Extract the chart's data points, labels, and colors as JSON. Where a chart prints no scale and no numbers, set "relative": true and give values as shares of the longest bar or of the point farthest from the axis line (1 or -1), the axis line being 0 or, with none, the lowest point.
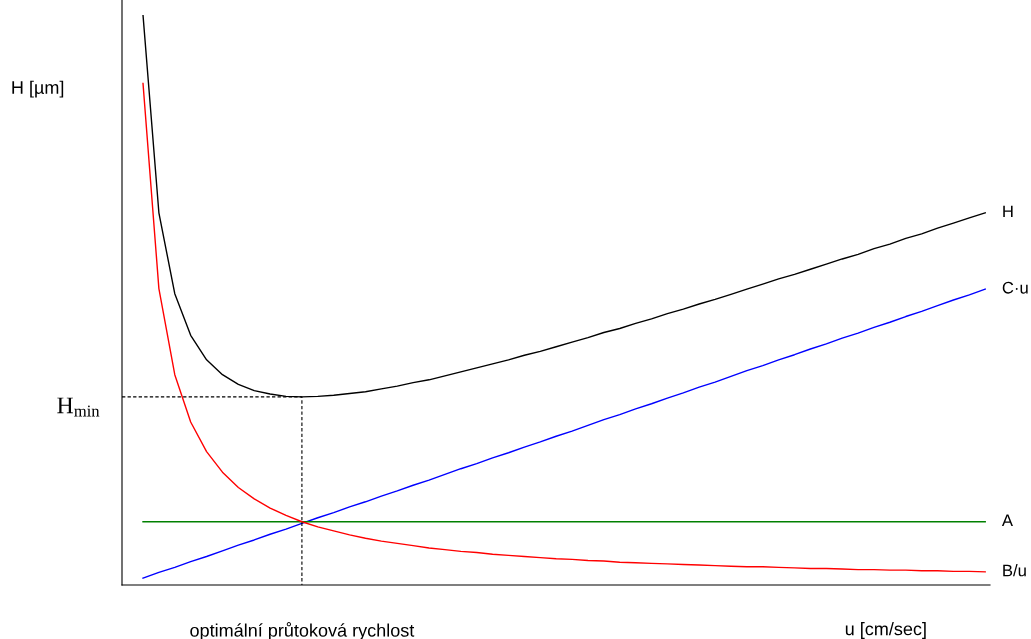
{
  "chart_data": {
    "type": "line",
    "relative": true,
    "ylabel": "H [µm]",
    "xlabel": "u [cm/sec]",
    "categories": [
      null,
      null,
      null,
      null,
      null,
      null,
      null,
      null,
      null,
      null,
      null,
      null,
      null,
      null,
      null,
      null,
      null,
      null,
      null,
      null,
      null,
      null,
      null,
      null,
      null,
      null,
      null,
      null,
      null,
      null,
      null,
      null,
      null,
      null,
      null,
      null,
      null,
      null,
      null,
      null,
      null,
      null,
      null,
      null,
      null,
      null,
      null,
      null,
      null,
      null,
      null,
      null,
      null,
      null
    ],
    "series": [
      {
        "name": "H",
        "color": "#000000",
        "values": [
          1.0,
          0.653,
          0.511,
          0.438,
          0.395,
          0.369,
          0.352,
          0.341,
          0.335,
          0.331,
          0.33,
          0.331,
          0.333,
          0.336,
          0.339,
          0.344,
          0.349,
          0.355,
          0.36,
          0.367,
          0.374,
          0.381,
          0.388,
          0.395,
          0.403,
          0.41,
          0.418,
          0.426,
          0.434,
          0.443,
          0.45,
          0.459,
          0.467,
          0.476,
          0.484,
          0.493,
          0.501,
          0.51,
          0.519,
          0.528,
          0.537,
          0.545,
          0.554,
          0.563,
          0.572,
          0.58,
          0.59,
          0.598,
          0.608,
          0.616,
          0.626,
          0.635,
          0.644,
          0.653
        ]
      },
      {
        "name": "C·u",
        "color": "#0000ff",
        "values": [
          0.012,
          0.022,
          0.031,
          0.041,
          0.05,
          0.06,
          0.07,
          0.079,
          0.089,
          0.098,
          0.108,
          0.118,
          0.127,
          0.137,
          0.146,
          0.156,
          0.165,
          0.175,
          0.184,
          0.194,
          0.204,
          0.213,
          0.223,
          0.232,
          0.242,
          0.251,
          0.261,
          0.27,
          0.28,
          0.29,
          0.299,
          0.309,
          0.318,
          0.328,
          0.337,
          0.347,
          0.356,
          0.366,
          0.376,
          0.385,
          0.395,
          0.404,
          0.414,
          0.423,
          0.433,
          0.442,
          0.452,
          0.461,
          0.471,
          0.48,
          0.49,
          0.5,
          0.509,
          0.519
        ]
      },
      {
        "name": "A",
        "color": "#008000",
        "values": [
          0.111,
          0.111,
          0.111,
          0.111,
          0.111,
          0.111,
          0.111,
          0.111,
          0.111,
          0.111,
          0.111,
          0.111,
          0.111,
          0.111,
          0.111,
          0.111,
          0.111,
          0.111,
          0.111,
          0.111,
          0.111,
          0.111,
          0.111,
          0.111,
          0.111,
          0.111,
          0.111,
          0.111,
          0.111,
          0.111,
          0.111,
          0.111,
          0.111,
          0.111,
          0.111,
          0.111,
          0.111,
          0.111,
          0.111,
          0.111,
          0.111,
          0.111,
          0.111,
          0.111,
          0.111,
          0.111,
          0.111,
          0.111,
          0.111,
          0.111,
          0.111,
          0.111,
          0.111,
          0.111
        ]
      },
      {
        "name": "B/u",
        "color": "#ff0000",
        "values": [
          0.88,
          0.52,
          0.369,
          0.286,
          0.234,
          0.198,
          0.171,
          0.151,
          0.135,
          0.122,
          0.111,
          0.102,
          0.095,
          0.088,
          0.082,
          0.077,
          0.073,
          0.069,
          0.065,
          0.062,
          0.059,
          0.057,
          0.054,
          0.052,
          0.05,
          0.048,
          0.046,
          0.045,
          0.043,
          0.042,
          0.04,
          0.039,
          0.038,
          0.037,
          0.036,
          0.035,
          0.034,
          0.033,
          0.032,
          0.032,
          0.031,
          0.03,
          0.029,
          0.029,
          0.028,
          0.027,
          0.027,
          0.026,
          0.026,
          0.025,
          0.025,
          0.024,
          0.024,
          0.023
        ]
      }
    ],
    "ref_lines": [
      {
        "axis": "y",
        "value": 0.33,
        "label": "H$_{min}$",
        "color": "#000000",
        "line_style": "dashed"
      }
    ],
    "annotations": [
      "optimální průtoková rychlost"
    ],
    "legend": false,
    "tick_labels": false
  }
}
